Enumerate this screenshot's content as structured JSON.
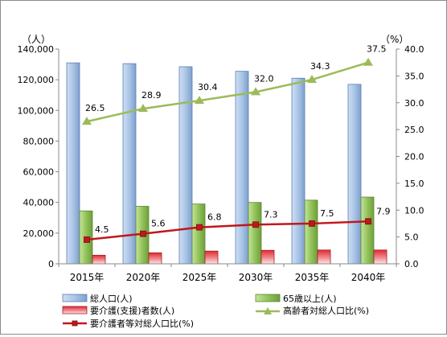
{
  "chart_data": {
    "type": "bar",
    "categories": [
      "2015年",
      "2020年",
      "2025年",
      "2030年",
      "2035年",
      "2040年"
    ],
    "y_left": {
      "unit": "（人）",
      "ylim": [
        0,
        140000
      ],
      "ticks": [
        "0",
        "20,000",
        "40,000",
        "60,000",
        "80,000",
        "100,000",
        "120,000",
        "140,000"
      ]
    },
    "y_right": {
      "unit": "（%）",
      "ylim": [
        0,
        40
      ],
      "ticks": [
        "0.0",
        "5.0",
        "10.0",
        "15.0",
        "20.0",
        "25.0",
        "30.0",
        "35.0",
        "40.0"
      ]
    },
    "series": [
      {
        "name": "総人口(人)",
        "kind": "bar",
        "axis": "left",
        "color": "#a9c4e6",
        "values": [
          131000,
          130500,
          128500,
          125500,
          121000,
          117000
        ]
      },
      {
        "name": "65歳以上(人)",
        "kind": "bar",
        "axis": "left",
        "color": "#92c35a",
        "values": [
          34500,
          37500,
          39000,
          40000,
          41500,
          43500
        ]
      },
      {
        "name": "要介護(支援)者数(人)",
        "kind": "bar",
        "axis": "left",
        "color": "#e8414a",
        "values": [
          5600,
          7200,
          8300,
          8800,
          9000,
          9000
        ]
      },
      {
        "name": "高齢者対総人口比(%)",
        "kind": "line",
        "axis": "right",
        "color": "#9bbb59",
        "marker": "triangle",
        "values": [
          26.5,
          28.9,
          30.4,
          32.0,
          34.3,
          37.5
        ],
        "labels": [
          "26.5",
          "28.9",
          "30.4",
          "32.0",
          "34.3",
          "37.5"
        ]
      },
      {
        "name": "要介護者等対総人口比(%)",
        "kind": "line",
        "axis": "right",
        "color": "#c0171d",
        "marker": "square",
        "values": [
          4.5,
          5.6,
          6.8,
          7.3,
          7.5,
          7.9
        ],
        "labels": [
          "4.5",
          "5.6",
          "6.8",
          "7.3",
          "7.5",
          "7.9"
        ]
      }
    ],
    "legend": {
      "placement": "bottom",
      "items": [
        "総人口(人)",
        "65歳以上(人)",
        "要介護(支援)者数(人)",
        "高齢者対総人口比(%)",
        "要介護者等対総人口比(%)"
      ]
    },
    "grid": false
  }
}
